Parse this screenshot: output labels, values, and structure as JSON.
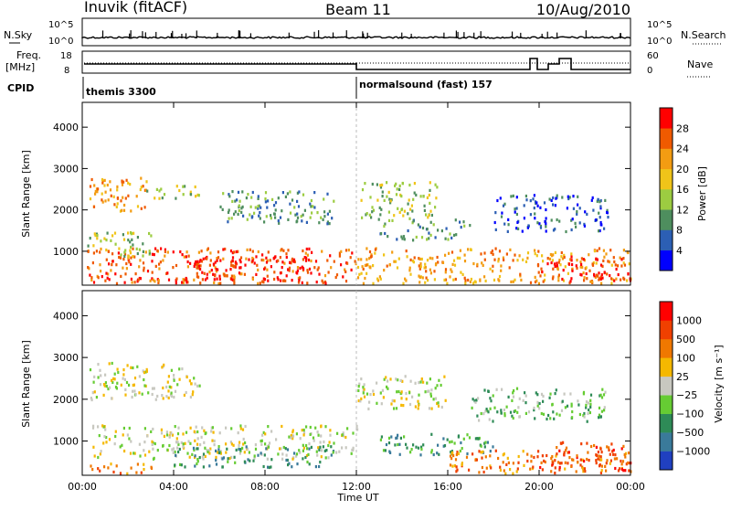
{
  "header": {
    "station": "Inuvik (fitACF)",
    "beam": "Beam 11",
    "date": "10/Aug/2010"
  },
  "top_panel": {
    "left_label": "N.Sky",
    "right_label": "N.Search",
    "left_ticks": [
      "10^5",
      "10^0"
    ],
    "right_ticks": [
      "10^5",
      "10^0"
    ]
  },
  "freq_panel": {
    "left_label_1": "Freq.",
    "left_label_2": "[MHz]",
    "right_label": "Nave",
    "left_ticks": [
      "18",
      "8"
    ],
    "right_ticks": [
      "60",
      "0"
    ]
  },
  "cpid_panel": {
    "label": "CPID",
    "modes": [
      "themis 3300",
      "normalsound (fast) 157"
    ]
  },
  "chart_data": [
    {
      "type": "heatmap",
      "name": "power",
      "ylabel": "Slant Range [km]",
      "yticks": [
        "1000",
        "2000",
        "3000",
        "4000"
      ],
      "ylim": [
        180,
        4600
      ],
      "xlim": [
        0,
        24
      ],
      "colorbar_label": "Power [dB]",
      "colorbar_ticks": [
        "4",
        "8",
        "12",
        "16",
        "20",
        "24",
        "28"
      ],
      "colors": [
        "#0000ff",
        "#2c5fb4",
        "#4e8e5e",
        "#9ccc41",
        "#f0c419",
        "#f39c12",
        "#f05a00",
        "#ff0000"
      ],
      "regions": [
        {
          "t0": 0.3,
          "t1": 2.8,
          "r0": 2000,
          "r1": 2800,
          "level": 5
        },
        {
          "t0": 2.8,
          "t1": 5.2,
          "r0": 2300,
          "r1": 2700,
          "level": 3
        },
        {
          "t0": 0.2,
          "t1": 12.0,
          "r0": 250,
          "r1": 1100,
          "level": 6
        },
        {
          "t0": 4.5,
          "t1": 10.0,
          "r0": 300,
          "r1": 900,
          "level": 7
        },
        {
          "t0": 0.2,
          "t1": 3.0,
          "r0": 900,
          "r1": 1500,
          "level": 3
        },
        {
          "t0": 6.0,
          "t1": 11.0,
          "r0": 1700,
          "r1": 2500,
          "level": 2
        },
        {
          "t0": 12.0,
          "t1": 15.5,
          "r0": 1800,
          "r1": 2700,
          "level": 3
        },
        {
          "t0": 12.0,
          "t1": 24.0,
          "r0": 250,
          "r1": 1100,
          "level": 5
        },
        {
          "t0": 20.0,
          "t1": 24.0,
          "r0": 300,
          "r1": 900,
          "level": 7
        },
        {
          "t0": 13.0,
          "t1": 17.0,
          "r0": 1300,
          "r1": 1800,
          "level": 2
        },
        {
          "t0": 18.0,
          "t1": 23.0,
          "r0": 1500,
          "r1": 2400,
          "level": 1
        }
      ]
    },
    {
      "type": "heatmap",
      "name": "velocity",
      "ylabel": "Slant Range [km]",
      "yticks": [
        "1000",
        "2000",
        "3000",
        "4000"
      ],
      "ylim": [
        180,
        4600
      ],
      "xlim": [
        0,
        24
      ],
      "xticks": [
        "00:00",
        "04:00",
        "08:00",
        "12:00",
        "16:00",
        "20:00",
        "00:00"
      ],
      "xlabel": "Time UT",
      "colorbar_label": "Velocity [m s⁻¹]",
      "colorbar_ticks": [
        "1000",
        "500",
        "100",
        "25",
        "−25",
        "−100",
        "−500",
        "−1000"
      ],
      "colors": [
        "#2040c0",
        "#3a7a9a",
        "#2e8b57",
        "#66cc33",
        "#c8c8c0",
        "#f5b800",
        "#f07800",
        "#f04000",
        "#ff0000"
      ],
      "regions": [
        {
          "t0": 0.3,
          "t1": 5.2,
          "r0": 2000,
          "r1": 2900,
          "level": 4
        },
        {
          "t0": 0.3,
          "t1": 12.0,
          "r0": 600,
          "r1": 1400,
          "level": 4
        },
        {
          "t0": 4.0,
          "t1": 11.0,
          "r0": 400,
          "r1": 900,
          "level": 2
        },
        {
          "t0": 12.0,
          "t1": 16.0,
          "r0": 1800,
          "r1": 2600,
          "level": 4
        },
        {
          "t0": 13.0,
          "t1": 18.0,
          "r0": 700,
          "r1": 1200,
          "level": 2
        },
        {
          "t0": 16.0,
          "t1": 24.0,
          "r0": 250,
          "r1": 800,
          "level": 6
        },
        {
          "t0": 20.0,
          "t1": 24.0,
          "r0": 300,
          "r1": 1000,
          "level": 7
        },
        {
          "t0": 0.3,
          "t1": 3.0,
          "r0": 250,
          "r1": 500,
          "level": 6
        },
        {
          "t0": 17.0,
          "t1": 23.0,
          "r0": 1500,
          "r1": 2300,
          "level": 3
        }
      ]
    }
  ]
}
